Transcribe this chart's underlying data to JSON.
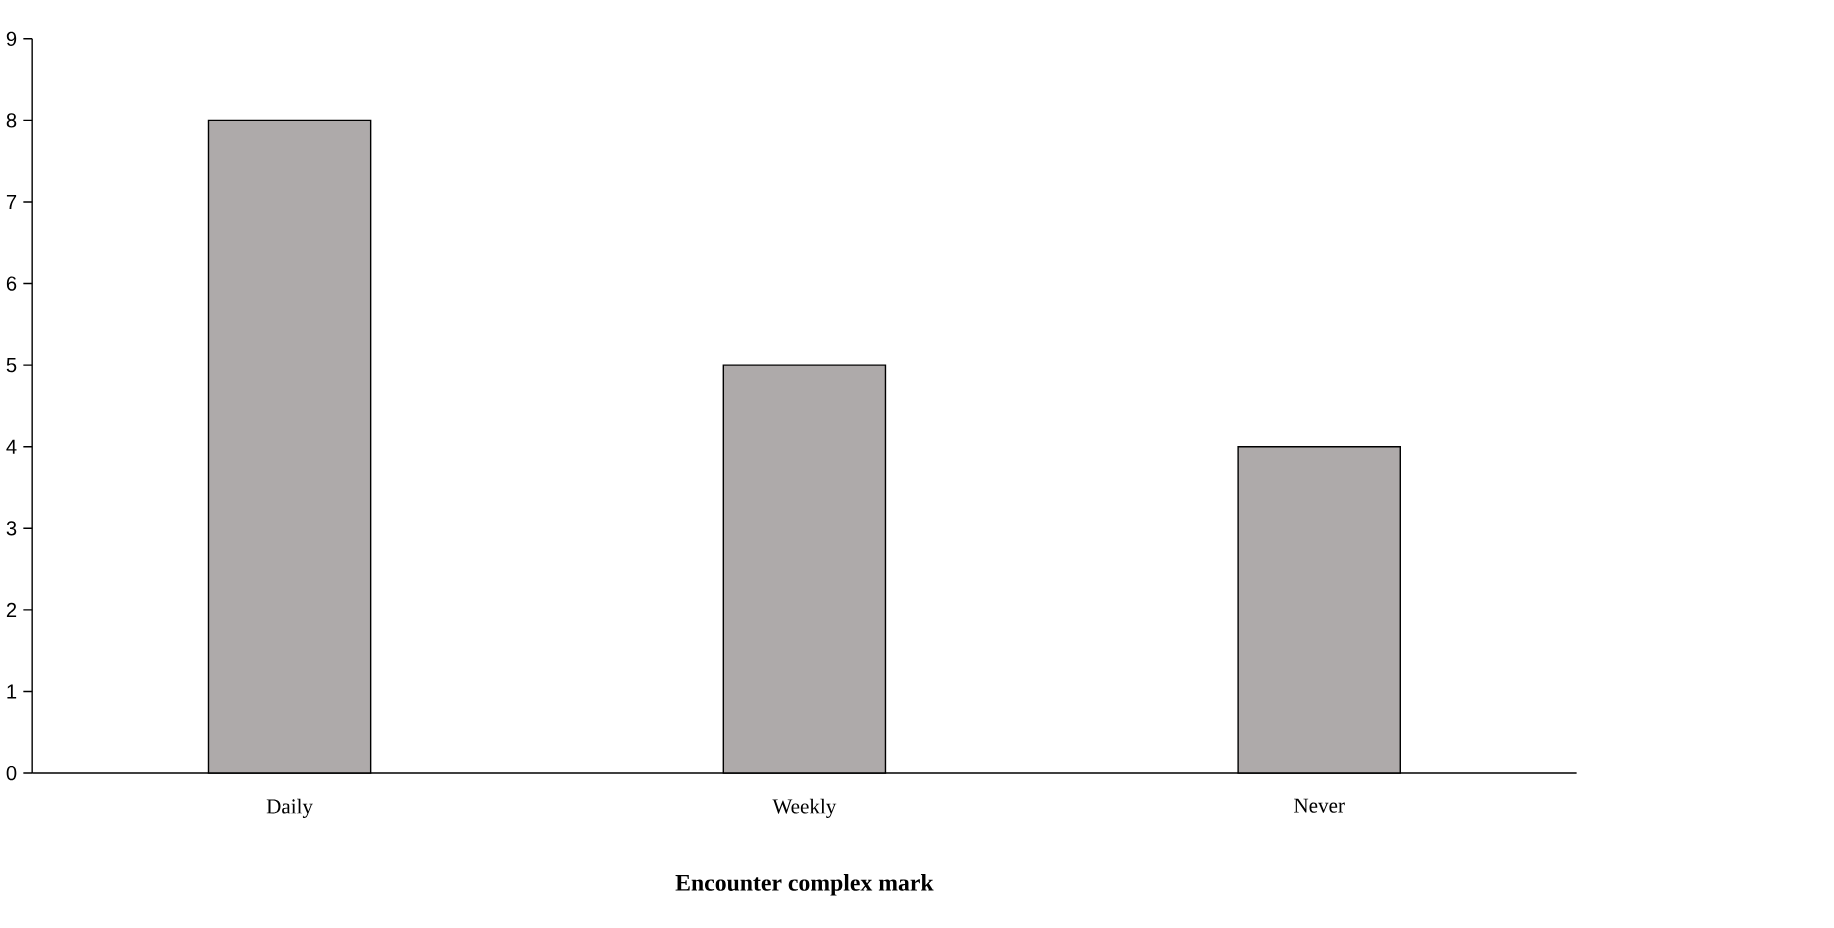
{
  "chart_data": {
    "type": "bar",
    "xlabel": "Encounter complex mark",
    "categories": [
      "Daily",
      "Weekly",
      "Never"
    ],
    "values": [
      8,
      5,
      4
    ],
    "color": "#aeaaaa",
    "ylim": [
      0,
      9
    ],
    "yticks": [
      0,
      1,
      2,
      3,
      4,
      5,
      6,
      7,
      8,
      9
    ]
  }
}
